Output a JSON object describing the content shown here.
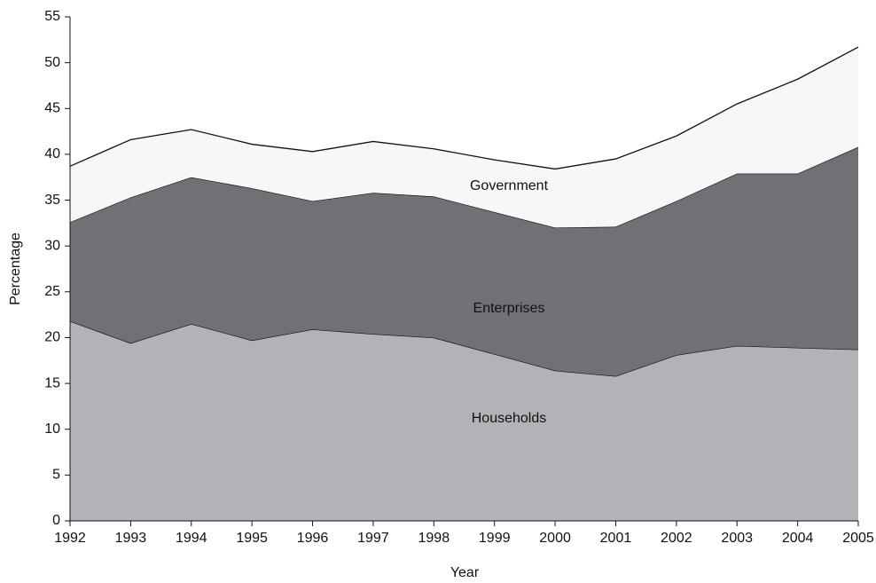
{
  "chart_data": {
    "type": "stacked_area",
    "x": [
      1992,
      1993,
      1994,
      1995,
      1996,
      1997,
      1998,
      1999,
      2000,
      2001,
      2002,
      2003,
      2004,
      2005
    ],
    "series": [
      {
        "name": "Households",
        "color": "#b2b3b7",
        "values": [
          21.8,
          19.4,
          21.5,
          19.7,
          20.9,
          20.4,
          20.0,
          18.2,
          16.4,
          15.8,
          18.1,
          19.1,
          18.9,
          18.7
        ]
      },
      {
        "name": "Enterprises",
        "color": "#717175",
        "values": [
          10.8,
          15.9,
          16.0,
          16.6,
          14.0,
          15.4,
          15.4,
          15.5,
          15.6,
          16.3,
          16.8,
          18.8,
          19.0,
          22.1
        ]
      },
      {
        "name": "Government",
        "color": "#f7f7f7",
        "values": [
          6.1,
          6.3,
          5.2,
          4.8,
          5.4,
          5.6,
          5.2,
          5.7,
          6.4,
          7.4,
          7.1,
          7.6,
          10.3,
          10.9
        ]
      }
    ],
    "xlabel": "Year",
    "ylabel": "Percentage",
    "xlim": [
      1992,
      2005
    ],
    "xticks": [
      1992,
      1993,
      1994,
      1995,
      1996,
      1997,
      1998,
      1999,
      2000,
      2001,
      2002,
      2003,
      2004,
      2005
    ],
    "ylim": [
      0,
      55
    ],
    "yticks": [
      0,
      5,
      10,
      15,
      20,
      25,
      30,
      35,
      40,
      45,
      50,
      55
    ]
  }
}
